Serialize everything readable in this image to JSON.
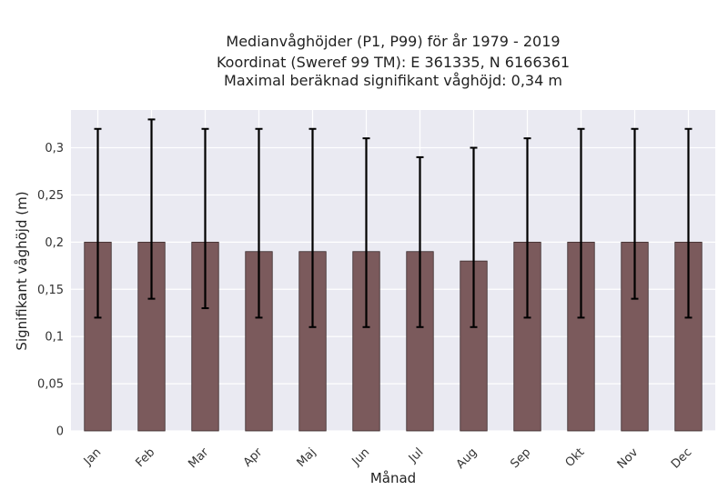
{
  "chart_data": {
    "type": "bar",
    "title_lines": [
      "Medianvåghöjder (P1, P99) för år 1979 - 2019",
      "Koordinat (Sweref 99 TM): E 361335, N 6166361",
      "Maximal beräknad signifikant våghöjd: 0,34 m"
    ],
    "xlabel": "Månad",
    "ylabel": "Signifikant våghöjd (m)",
    "categories": [
      "Jan",
      "Feb",
      "Mar",
      "Apr",
      "Maj",
      "Jun",
      "Jul",
      "Aug",
      "Sep",
      "Okt",
      "Nov",
      "Dec"
    ],
    "values": [
      0.2,
      0.2,
      0.2,
      0.19,
      0.19,
      0.19,
      0.19,
      0.18,
      0.2,
      0.2,
      0.2,
      0.2
    ],
    "p1": [
      0.12,
      0.14,
      0.13,
      0.12,
      0.11,
      0.11,
      0.11,
      0.11,
      0.12,
      0.12,
      0.14,
      0.12
    ],
    "p99": [
      0.32,
      0.33,
      0.32,
      0.32,
      0.32,
      0.31,
      0.29,
      0.3,
      0.31,
      0.32,
      0.32,
      0.32
    ],
    "ylim": [
      0,
      0.34
    ],
    "yticks": [
      0,
      0.05,
      0.1,
      0.15,
      0.2,
      0.25,
      0.3
    ],
    "ytick_labels": [
      "0",
      "0,05",
      "0,1",
      "0,15",
      "0,2",
      "0,25",
      "0,3"
    ],
    "grid": true,
    "colors": {
      "bar": "#7b5a5c",
      "bar_edge": "#3a2a2b",
      "errorbar": "#000000",
      "plot_background": "#eaeaf2",
      "grid": "#ffffff"
    }
  }
}
